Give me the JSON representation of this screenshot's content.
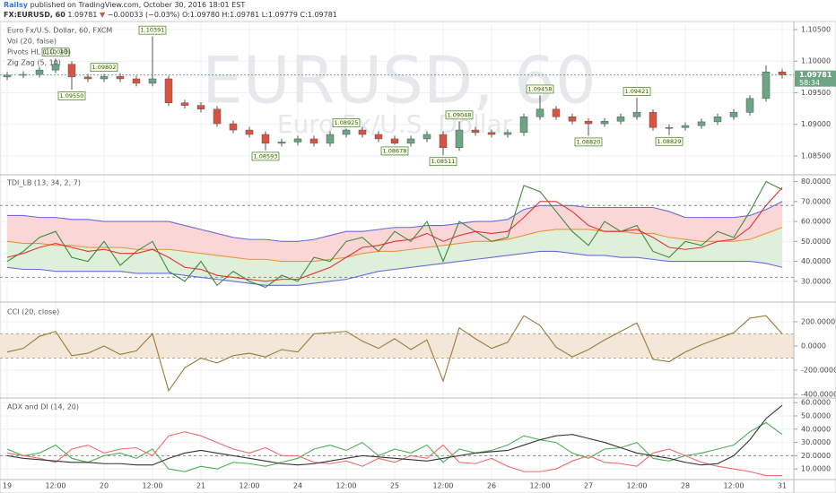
{
  "header": {
    "publisher": "Railsy",
    "published": "published on TradingView.com, October 30, 2016 18:01 EST",
    "symbol": "FX:EURUSD, 60",
    "last": "1.09781",
    "direction": "▼",
    "change": "−0.00033 (−0.03%)",
    "ohlc": "O:1.09780 H:1.09781 L:1.09779 C:1.09781"
  },
  "chart_data": [
    {
      "type": "candlestick",
      "legend": [
        "Euro Fx/U.S. Dollar, 60, FXCM",
        "Vol (20, false)",
        "Pivots HL (10, 10)",
        "Zig Zag (5, 10)"
      ],
      "watermark": "EURUSD, 60",
      "watermark_sub": "Euro Fx/U.S. Dollar",
      "up_color": "#6ba583",
      "down_color": "#d75442",
      "open": [
        1.0975,
        1.0978,
        1.0979,
        1.0986,
        1.0995,
        1.0975,
        1.0972,
        1.0976,
        1.0972,
        1.0965,
        1.0972,
        1.0934,
        1.093,
        1.0924,
        1.0901,
        1.0891,
        1.0884,
        1.087,
        1.0872,
        1.0877,
        1.087,
        1.0884,
        1.0891,
        1.0884,
        1.0877,
        1.087,
        1.0877,
        1.0884,
        1.0863,
        1.0891,
        1.0887,
        1.0884,
        1.0887,
        1.0912,
        1.0924,
        1.0912,
        1.0905,
        1.0901,
        1.0905,
        1.0912,
        1.0919,
        1.0895,
        1.0895,
        1.0898,
        1.0904,
        1.0912,
        1.0919,
        1.0941,
        1.0983
      ],
      "high": [
        1.0983,
        1.0984,
        1.0991,
        1.1004,
        1.1,
        1.098,
        1.098,
        1.0981,
        1.0977,
        1.1039,
        1.0977,
        1.0939,
        1.0935,
        1.0929,
        1.0906,
        1.0896,
        1.0889,
        1.0877,
        1.0882,
        1.0882,
        1.0889,
        1.0893,
        1.0896,
        1.0889,
        1.0882,
        1.0882,
        1.0889,
        1.0889,
        1.0905,
        1.0896,
        1.0892,
        1.0892,
        1.0917,
        1.0946,
        1.0929,
        1.0917,
        1.091,
        1.091,
        1.0917,
        1.0942,
        1.0924,
        1.09,
        1.0903,
        1.0909,
        1.0917,
        1.0924,
        1.0946,
        1.0993,
        1.0988
      ],
      "low": [
        1.097,
        1.0973,
        1.0974,
        1.0981,
        1.0955,
        1.0967,
        1.0967,
        1.0967,
        1.096,
        1.096,
        1.0929,
        1.0925,
        1.0919,
        1.0896,
        1.0886,
        1.0879,
        1.0859,
        1.0865,
        1.0867,
        1.0865,
        1.0865,
        1.0879,
        1.0879,
        1.0872,
        1.0868,
        1.0865,
        1.0872,
        1.0851,
        1.0858,
        1.0882,
        1.0879,
        1.0879,
        1.0882,
        1.0907,
        1.0907,
        1.09,
        1.0882,
        1.0896,
        1.09,
        1.0907,
        1.089,
        1.0883,
        1.089,
        1.0893,
        1.0899,
        1.0907,
        1.0914,
        1.0936,
        1.0973
      ],
      "close": [
        1.0978,
        1.0979,
        1.0986,
        1.0995,
        1.0975,
        1.0972,
        1.0976,
        1.0972,
        1.0965,
        1.0972,
        1.0934,
        1.093,
        1.0924,
        1.0901,
        1.0891,
        1.0884,
        1.087,
        1.0872,
        1.0877,
        1.087,
        1.0884,
        1.0891,
        1.0884,
        1.0877,
        1.087,
        1.0877,
        1.0884,
        1.0863,
        1.0891,
        1.0887,
        1.0884,
        1.0887,
        1.0912,
        1.0924,
        1.0912,
        1.0905,
        1.0901,
        1.0905,
        1.0912,
        1.0919,
        1.0895,
        1.0895,
        1.0898,
        1.0904,
        1.0912,
        1.0919,
        1.0941,
        1.0983,
        1.0978
      ],
      "pivots": [
        {
          "at": 3,
          "kind": "high",
          "value": 1.10043,
          "label": "1.10043"
        },
        {
          "at": 6,
          "kind": "high",
          "value": 1.09802,
          "label": "1.09802"
        },
        {
          "at": 4,
          "kind": "low",
          "value": 1.0955,
          "label": "1.09550"
        },
        {
          "at": 9,
          "kind": "high",
          "value": 1.10391,
          "label": "1.10391"
        },
        {
          "at": 16,
          "kind": "low",
          "value": 1.08593,
          "label": "1.08593"
        },
        {
          "at": 21,
          "kind": "high",
          "value": 1.08925,
          "label": "1.08925"
        },
        {
          "at": 24,
          "kind": "low",
          "value": 1.08678,
          "label": "1.08678"
        },
        {
          "at": 28,
          "kind": "high",
          "value": 1.09048,
          "label": "1.09048"
        },
        {
          "at": 27,
          "kind": "low",
          "value": 1.08511,
          "label": "1.08511"
        },
        {
          "at": 33,
          "kind": "high",
          "value": 1.09458,
          "label": "1.09458"
        },
        {
          "at": 36,
          "kind": "low",
          "value": 1.0882,
          "label": "1.08820"
        },
        {
          "at": 39,
          "kind": "high",
          "value": 1.09421,
          "label": "1.09421"
        },
        {
          "at": 41,
          "kind": "low",
          "value": 1.08829,
          "label": "1.08829"
        }
      ],
      "last_price": {
        "value": 1.09781,
        "label": "1.09781"
      },
      "countdown": "58:34",
      "ylim": [
        1.0823,
        1.10585
      ],
      "yticks": [
        {
          "value": 1.085,
          "label": "1.08500"
        },
        {
          "value": 1.09,
          "label": "1.09000"
        },
        {
          "value": 1.095,
          "label": "1.09500"
        },
        {
          "value": 1.1,
          "label": "1.10000"
        },
        {
          "value": 1.105,
          "label": "1.10500"
        }
      ],
      "grid": true
    },
    {
      "type": "line",
      "title": "TDI_LB (13, 34, 2, 7)",
      "ylim": [
        20.5,
        82.5
      ],
      "yticks": [
        {
          "value": 30,
          "label": "30.0000"
        },
        {
          "value": 40,
          "label": "40.0000"
        },
        {
          "value": 50,
          "label": "50.0000"
        },
        {
          "value": 60,
          "label": "60.0000"
        },
        {
          "value": 70,
          "label": "70.0000"
        },
        {
          "value": 80,
          "label": "80.0000"
        }
      ],
      "levels": [
        68,
        32
      ],
      "fill_upper": "#fbd6d6",
      "fill_lower": "#dff0da",
      "grid": true,
      "series": [
        {
          "color": "#6a6ae0",
          "values": [
            63,
            63,
            62,
            62,
            61,
            61,
            60,
            60,
            60,
            60,
            60,
            58,
            56,
            54,
            52,
            51,
            51,
            50,
            50,
            51,
            53,
            55,
            55,
            56,
            57,
            57,
            58,
            58,
            59,
            60,
            60,
            61,
            66,
            68,
            68,
            68,
            67,
            67,
            67,
            67,
            67,
            65,
            62,
            62,
            62,
            62,
            63,
            66,
            70
          ]
        },
        {
          "color": "#6a6ae0",
          "values": [
            37,
            36,
            36,
            35,
            35,
            35,
            35,
            35,
            34,
            34,
            34,
            33,
            32,
            31,
            30,
            29,
            28,
            28,
            28,
            29,
            30,
            31,
            33,
            35,
            36,
            37,
            38,
            39,
            40,
            41,
            42,
            43,
            44,
            45,
            45,
            44,
            43,
            43,
            42,
            42,
            41,
            40,
            40,
            40,
            40,
            40,
            40,
            39,
            37
          ]
        },
        {
          "color": "#f0923a",
          "values": [
            50,
            49,
            49,
            48,
            48,
            47,
            47,
            47,
            46,
            46,
            46,
            45,
            44,
            43,
            42,
            41,
            41,
            40,
            40,
            40,
            41,
            42,
            44,
            45,
            45,
            46,
            47,
            48,
            49,
            50,
            50,
            51,
            53,
            55,
            56,
            56,
            56,
            55,
            55,
            54,
            54,
            52,
            51,
            50,
            50,
            50,
            51,
            54,
            57
          ]
        },
        {
          "color": "#3c8c3c",
          "values": [
            40,
            45,
            52,
            55,
            42,
            40,
            50,
            38,
            45,
            50,
            35,
            30,
            40,
            28,
            35,
            30,
            27,
            33,
            30,
            42,
            40,
            50,
            52,
            45,
            55,
            50,
            60,
            40,
            60,
            55,
            50,
            52,
            78,
            75,
            65,
            55,
            48,
            60,
            55,
            58,
            45,
            42,
            50,
            48,
            55,
            52,
            65,
            80,
            76
          ]
        },
        {
          "color": "#e03434",
          "values": [
            42,
            44,
            47,
            49,
            47,
            45,
            46,
            44,
            44,
            46,
            42,
            37,
            36,
            33,
            32,
            31,
            30,
            31,
            31,
            34,
            37,
            42,
            47,
            48,
            50,
            51,
            54,
            50,
            53,
            55,
            54,
            55,
            62,
            70,
            70,
            65,
            58,
            55,
            55,
            56,
            52,
            47,
            46,
            47,
            50,
            51,
            57,
            68,
            77
          ]
        }
      ]
    },
    {
      "type": "line",
      "title": "CCI (20, close)",
      "ylim": [
        -415,
        333
      ],
      "yticks": [
        {
          "value": -400,
          "label": "-400.0000"
        },
        {
          "value": -200,
          "label": "-200.0000"
        },
        {
          "value": 0,
          "label": "0.0000"
        },
        {
          "value": 200,
          "label": "200.0000"
        }
      ],
      "band": [
        100,
        -100
      ],
      "band_color": "#f3e7da",
      "grid": true,
      "series": [
        {
          "color": "#9a7a3a",
          "values": [
            -50,
            -20,
            80,
            120,
            -80,
            -60,
            0,
            -70,
            -40,
            100,
            -370,
            -180,
            -100,
            -140,
            -80,
            -60,
            -90,
            -30,
            -50,
            100,
            110,
            120,
            40,
            -20,
            60,
            -30,
            50,
            -290,
            150,
            60,
            -20,
            30,
            250,
            170,
            -10,
            -90,
            -30,
            50,
            120,
            190,
            -110,
            -130,
            -50,
            10,
            60,
            110,
            230,
            250,
            100
          ]
        }
      ]
    },
    {
      "type": "line",
      "title": "ADX and DI (14, 20)",
      "ylim": [
        2,
        61.5
      ],
      "yticks": [
        {
          "value": 10,
          "label": "10.0000"
        },
        {
          "value": 20,
          "label": "20.0000"
        },
        {
          "value": 30,
          "label": "30.0000"
        },
        {
          "value": 40,
          "label": "40.0000"
        },
        {
          "value": 50,
          "label": "50.0000"
        },
        {
          "value": 60,
          "label": "60.0000"
        }
      ],
      "levels": [
        20
      ],
      "grid": true,
      "categories": [
        "19",
        null,
        null,
        "12:00",
        null,
        null,
        "20",
        null,
        null,
        "12:00",
        null,
        null,
        "21",
        null,
        null,
        "12:00",
        null,
        null,
        "24",
        null,
        null,
        "12:00",
        null,
        null,
        "25",
        null,
        null,
        "12:00",
        null,
        null,
        "26",
        null,
        null,
        "12:00",
        null,
        null,
        "27",
        null,
        null,
        "12:00",
        null,
        null,
        "28",
        null,
        null,
        "12:00",
        null,
        null,
        "31"
      ],
      "series": [
        {
          "color": "#4caf50",
          "values": [
            25,
            20,
            22,
            28,
            18,
            15,
            20,
            22,
            18,
            25,
            10,
            8,
            12,
            10,
            15,
            14,
            12,
            15,
            18,
            25,
            28,
            24,
            30,
            20,
            25,
            22,
            28,
            15,
            25,
            22,
            24,
            28,
            35,
            32,
            30,
            22,
            18,
            25,
            26,
            30,
            18,
            16,
            20,
            22,
            25,
            28,
            38,
            45,
            36
          ]
        },
        {
          "color": "#f06a6a",
          "values": [
            22,
            20,
            18,
            15,
            25,
            28,
            22,
            25,
            26,
            20,
            35,
            38,
            35,
            30,
            25,
            22,
            26,
            20,
            20,
            15,
            14,
            16,
            12,
            18,
            15,
            20,
            18,
            28,
            15,
            14,
            18,
            12,
            8,
            8,
            10,
            16,
            20,
            15,
            14,
            12,
            22,
            25,
            20,
            15,
            12,
            10,
            8,
            5,
            5
          ]
        },
        {
          "color": "#333333",
          "values": [
            20,
            18,
            17,
            16,
            15,
            15,
            14,
            14,
            13,
            13,
            18,
            22,
            24,
            22,
            20,
            18,
            16,
            14,
            13,
            14,
            16,
            18,
            20,
            19,
            18,
            17,
            16,
            18,
            20,
            22,
            23,
            24,
            28,
            32,
            35,
            36,
            33,
            30,
            26,
            22,
            20,
            18,
            15,
            13,
            14,
            20,
            32,
            48,
            58
          ]
        }
      ]
    }
  ]
}
